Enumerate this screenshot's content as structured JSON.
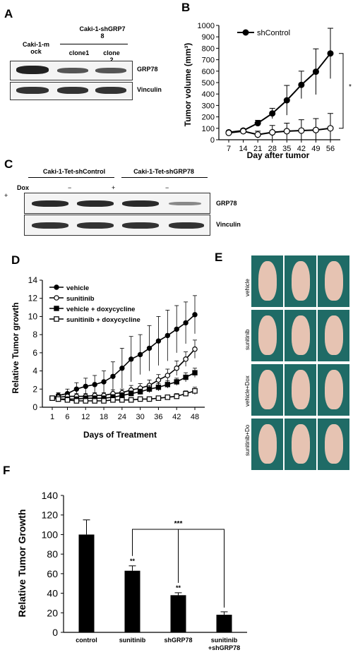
{
  "panels": {
    "A": "A",
    "B": "B",
    "C": "C",
    "D": "D",
    "E": "E",
    "F": "F"
  },
  "panelA": {
    "lane1": "Caki-1-m\nock",
    "group": "Caki-1-shGRP7\n8",
    "lane2": "clone1",
    "lane3": "clone\n2",
    "row1": "GRP78",
    "row2": "Vinculin"
  },
  "panelC": {
    "group1": "Caki-1-Tet-shControl",
    "group2": "Caki-1-Tet-shGRP78",
    "dox": "Dox",
    "plus1": "+",
    "minus1": "−",
    "plus2": "+",
    "minus2": "−",
    "row1": "GRP78",
    "row2": "Vinculin"
  },
  "panelE": {
    "rows": [
      "vehicle",
      "sunitinib",
      "vehicle+Dox",
      "sunitinib+Do"
    ]
  },
  "chart_data": [
    {
      "id": "B",
      "type": "line",
      "xlabel": "Day after tumor",
      "ylabel": "Tumor volume (mm³)",
      "x": [
        7,
        14,
        21,
        28,
        35,
        42,
        49,
        56
      ],
      "ylim": [
        0,
        1000
      ],
      "yticks": [
        0,
        100,
        200,
        300,
        400,
        500,
        600,
        700,
        800,
        900,
        1000
      ],
      "legend": "top-left",
      "annotation": "*",
      "series": [
        {
          "name": "shControl",
          "marker": "filled-circle",
          "values": [
            65,
            80,
            145,
            230,
            345,
            480,
            595,
            755
          ],
          "errors": [
            10,
            15,
            25,
            45,
            130,
            120,
            200,
            220
          ]
        },
        {
          "marker": "open-circle",
          "values": [
            60,
            75,
            45,
            65,
            75,
            80,
            85,
            100
          ],
          "errors": [
            10,
            15,
            30,
            60,
            70,
            95,
            100,
            130
          ]
        }
      ]
    },
    {
      "id": "D",
      "type": "line",
      "xlabel": "Days of Treatment",
      "ylabel": "Relative Tumor growth",
      "x": [
        1,
        3,
        6,
        9,
        12,
        15,
        18,
        21,
        24,
        27,
        30,
        33,
        36,
        39,
        42,
        45,
        48
      ],
      "xticks": [
        1,
        6,
        12,
        18,
        24,
        30,
        36,
        42,
        48
      ],
      "ylim": [
        0,
        14
      ],
      "yticks": [
        0,
        2,
        4,
        6,
        8,
        10,
        12,
        14
      ],
      "legend": "top-left",
      "series": [
        {
          "name": "vehicle",
          "marker": "filled-circle",
          "values": [
            1,
            1.3,
            1.5,
            2,
            2.3,
            2.5,
            2.8,
            3.4,
            4.3,
            5.3,
            5.8,
            6.5,
            7.3,
            7.9,
            8.6,
            9.3,
            10.2
          ],
          "errors": [
            0.1,
            0.3,
            0.5,
            0.7,
            0.9,
            1,
            1.2,
            1.6,
            2.2,
            2.5,
            2.2,
            2.5,
            2.7,
            2.8,
            2.6,
            2.3,
            2.1
          ]
        },
        {
          "name": "sunitinib",
          "marker": "open-circle",
          "values": [
            1,
            1.1,
            1.2,
            1.2,
            1.2,
            1.3,
            1.3,
            1.5,
            1.6,
            1.9,
            2.1,
            2.4,
            3,
            3.5,
            4.3,
            5.3,
            6.4
          ],
          "errors": [
            0.1,
            0.2,
            0.3,
            0.3,
            0.3,
            0.3,
            0.3,
            0.4,
            0.4,
            0.5,
            0.5,
            0.6,
            0.6,
            0.7,
            0.8,
            0.8,
            1
          ]
        },
        {
          "name": "vehicle + doxycycline",
          "marker": "filled-square",
          "values": [
            1,
            0.9,
            0.9,
            0.9,
            1,
            1,
            1,
            1.1,
            1.3,
            1.5,
            1.7,
            2,
            2.2,
            2.5,
            2.8,
            3.3,
            3.8
          ],
          "errors": [
            0.1,
            0.1,
            0.1,
            0.1,
            0.2,
            0.2,
            0.2,
            0.3,
            0.3,
            0.3,
            0.3,
            0.4,
            0.4,
            0.4,
            0.4,
            0.5,
            0.5
          ]
        },
        {
          "name": "sunitinib + doxycycline",
          "marker": "open-square",
          "values": [
            1,
            0.9,
            0.8,
            0.7,
            0.7,
            0.7,
            0.7,
            0.8,
            0.8,
            0.8,
            0.9,
            0.9,
            1,
            1.1,
            1.2,
            1.5,
            1.8
          ],
          "errors": [
            0.1,
            0.1,
            0.1,
            0.1,
            0.1,
            0.1,
            0.1,
            0.1,
            0.2,
            0.2,
            0.2,
            0.2,
            0.2,
            0.2,
            0.3,
            0.3,
            0.4
          ]
        }
      ]
    },
    {
      "id": "F",
      "type": "bar",
      "ylabel": "Relative Tumor Growth",
      "categories": [
        "control",
        "sunitinib",
        "shGRP78",
        "sunitinib\n+shGRP78"
      ],
      "values": [
        100,
        63,
        38,
        18
      ],
      "errors": [
        15,
        5,
        2.5,
        3
      ],
      "ylim": [
        0,
        140
      ],
      "yticks": [
        0,
        20,
        40,
        60,
        80,
        100,
        120,
        140
      ],
      "significance": [
        "",
        "**",
        "**",
        ""
      ],
      "bracket": "***",
      "bar_color": "#000000"
    }
  ]
}
